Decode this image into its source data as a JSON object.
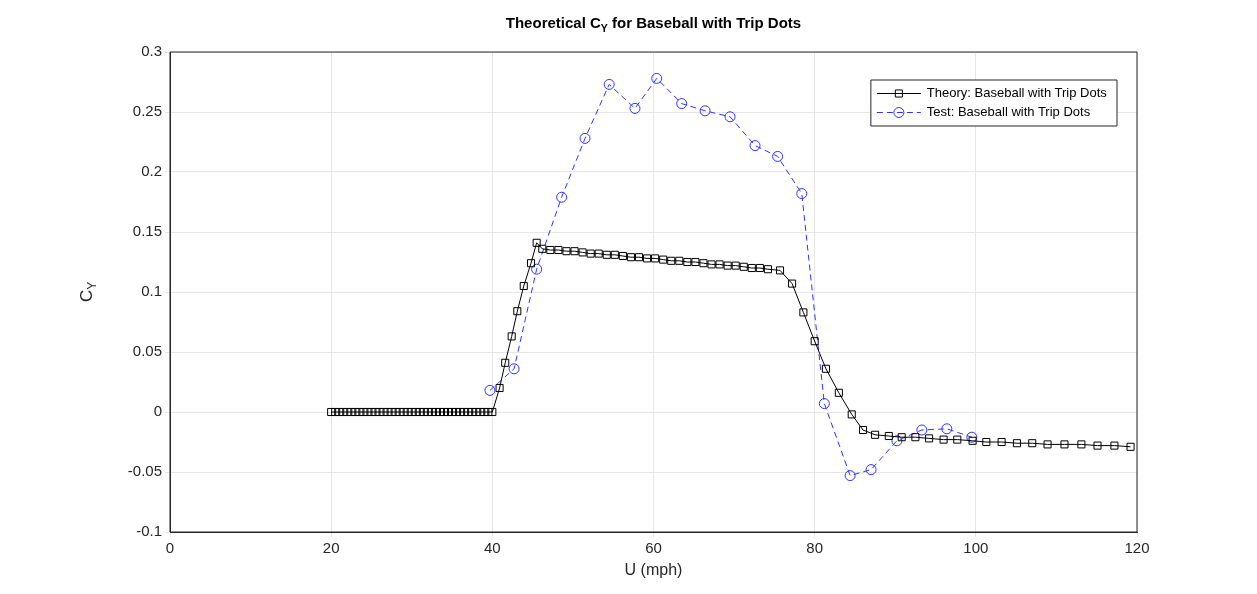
{
  "chart_data": {
    "type": "line",
    "title": "Theoretical C$_{Y}$ for Baseball with Trip Dots",
    "xlabel": "U (mph)",
    "ylabel": "C$_{Y}$",
    "xlim": [
      0,
      120
    ],
    "xticks": [
      0,
      20,
      40,
      60,
      80,
      100,
      120
    ],
    "ylim": [
      -0.1,
      0.3
    ],
    "yticks": [
      -0.1,
      -0.05,
      0,
      0.05,
      0.1,
      0.15,
      0.2,
      0.25,
      0.3
    ],
    "grid": true,
    "legend": "top right",
    "series": [
      {
        "name": "Theory: Baseball with Trip Dots",
        "color": "#000000",
        "marker": "square",
        "line_style": "solid",
        "x": [
          20,
          20.5,
          21,
          21.5,
          22,
          22.5,
          23,
          23.5,
          24,
          24.5,
          25,
          25.5,
          26,
          26.5,
          27,
          27.5,
          28,
          28.5,
          29,
          29.5,
          30,
          30.5,
          31,
          31.5,
          32,
          32.5,
          33,
          33.5,
          34,
          34.5,
          35,
          35.5,
          36,
          36.5,
          37,
          37.5,
          38,
          38.5,
          39,
          39.5,
          40,
          40.9,
          41.6,
          42.4,
          43.1,
          43.9,
          44.8,
          45.5,
          46.2,
          47.2,
          48.2,
          49.2,
          50.2,
          51.2,
          52.2,
          53.2,
          54.2,
          55.2,
          56.2,
          57.2,
          58.2,
          59.2,
          60.2,
          61.2,
          62.2,
          63.2,
          64.2,
          65.2,
          66.2,
          67.2,
          68.2,
          69.2,
          70.2,
          71.2,
          72.2,
          73.2,
          74.2,
          75.7,
          77.2,
          78.6,
          80.0,
          81.4,
          83.0,
          84.6,
          86.0,
          87.5,
          89.2,
          90.8,
          92.5,
          94.2,
          96.0,
          97.7,
          99.6,
          101.3,
          103.2,
          105.1,
          107.0,
          108.9,
          111.0,
          113.1,
          115.1,
          117.2,
          119.2
        ],
        "values": [
          0,
          0,
          0,
          0,
          0,
          0,
          0,
          0,
          0,
          0,
          0,
          0,
          0,
          0,
          0,
          0,
          0,
          0,
          0,
          0,
          0,
          0,
          0,
          0,
          0,
          0,
          0,
          0,
          0,
          0,
          0,
          0,
          0,
          0,
          0,
          0,
          0,
          0,
          0,
          0,
          0,
          0.02,
          0.041,
          0.063,
          0.084,
          0.105,
          0.124,
          0.141,
          0.136,
          0.135,
          0.135,
          0.134,
          0.134,
          0.133,
          0.132,
          0.132,
          0.131,
          0.131,
          0.13,
          0.129,
          0.129,
          0.128,
          0.128,
          0.127,
          0.126,
          0.126,
          0.125,
          0.125,
          0.124,
          0.123,
          0.123,
          0.122,
          0.122,
          0.121,
          0.12,
          0.12,
          0.119,
          0.118,
          0.107,
          0.083,
          0.059,
          0.036,
          0.016,
          -0.002,
          -0.015,
          -0.019,
          -0.02,
          -0.021,
          -0.021,
          -0.022,
          -0.023,
          -0.023,
          -0.024,
          -0.025,
          -0.025,
          -0.026,
          -0.026,
          -0.027,
          -0.027,
          -0.027,
          -0.028,
          -0.028,
          -0.029
        ]
      },
      {
        "name": "Test: Baseball with Trip Dots",
        "color": "#3333ff",
        "marker": "circle",
        "line_style": "dashed",
        "x": [
          39.7,
          42.7,
          45.5,
          48.6,
          51.5,
          54.5,
          57.7,
          60.4,
          63.5,
          66.4,
          69.5,
          72.6,
          75.4,
          78.4,
          81.2,
          84.4,
          87.0,
          90.2,
          93.3,
          96.4,
          99.5
        ],
        "values": [
          0.018,
          0.036,
          0.119,
          0.179,
          0.228,
          0.273,
          0.253,
          0.278,
          0.257,
          0.251,
          0.246,
          0.222,
          0.213,
          0.182,
          0.007,
          -0.053,
          -0.048,
          -0.024,
          -0.015,
          -0.014,
          -0.021
        ]
      }
    ]
  }
}
